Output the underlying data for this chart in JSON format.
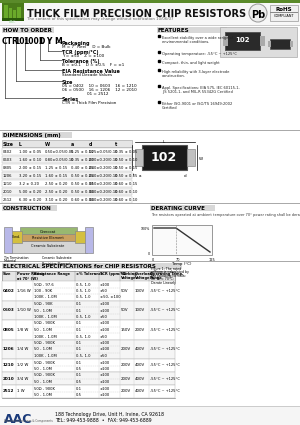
{
  "title": "THICK FILM PRECISION CHIP RESISTORS",
  "subtitle": "The content of this specification may change without notification 10/06/07",
  "bg_color": "#ffffff",
  "how_to_order_label": "HOW TO ORDER",
  "features_title": "FEATURES",
  "features": [
    "Excellent stability over a wide range of\nenvironmental conditions.",
    "Operating temperature: -55°C ~ +125°C",
    "Compact, thin, and light weight",
    "High reliability with 3-layer electrode\nconstruction.",
    "Appl. Specifications: EIA 575, IEC 60115-1,\nJIS 5201-1, and MIL-R 55342G Certified",
    "Either ISO-9001 or ISO/TS 16949:2002\nCertified"
  ],
  "dim_title": "DIMENSIONS (mm)",
  "dim_headers": [
    "Size",
    "L",
    "W",
    "a",
    "d",
    "t"
  ],
  "dim_rows": [
    [
      "0402",
      "1.00 ± 0.05",
      "0.50±0.05/0.05",
      "0.25 ± 0.10",
      "0.25±0.05/0.10",
      "0.35 ± 0.05"
    ],
    [
      "0603",
      "1.60 ± 0.10",
      "0.80±0.05/0.10",
      "0.35 ± 0.20",
      "0.30±0.20/0.10",
      "0.50 ± 0.10"
    ],
    [
      "0805",
      "2.00 ± 0.15",
      "1.25 ± 0.15",
      "0.40 ± 0.25",
      "0.40±0.20/0.10",
      "0.50 ± 0.15"
    ],
    [
      "1206",
      "3.20 ± 0.15",
      "1.60 ± 0.15",
      "0.50 ± 0.25",
      "0.40±0.20/0.10",
      "0.50 ± 0.15"
    ],
    [
      "1210",
      "3.2 ± 0.20",
      "2.50 ± 0.20",
      "0.50 ± 0.30",
      "0.50±0.20/0.10",
      "0.60 ± 0.15"
    ],
    [
      "2010",
      "5.00 ± 0.20",
      "2.50 ± 0.20",
      "0.50 ± 0.30",
      "0.40±0.20/0.10",
      "0.60 ± 0.10"
    ],
    [
      "2512",
      "6.30 ± 0.20",
      "3.10 ± 0.20",
      "0.60 ± 0.30",
      "0.40±0.20/0.10",
      "0.60 ± 0.10"
    ]
  ],
  "construction_title": "CONSTRUCTION",
  "derating_title": "DERATING CURVE",
  "derating_text": "The resistors operated at ambient temperature over 70° power rating shall be derated to reach device performance.",
  "elec_title": "ELECTRICAL SPECIFICATIONS for CHIP RESISTORS",
  "elec_headers": [
    "Size",
    "Power Rating\nat 70° (W)",
    "Resistance Range",
    "±% Tolerance",
    "TCR (ppm/°C)",
    "Working\nVoltage",
    "Overload\nVoltage",
    "Operating Temp.\nRange"
  ],
  "elec_rows": [
    [
      "0402",
      "1/16 W",
      [
        "50Ω - 97.6",
        "100 - 90K",
        "100K - 1.0M"
      ],
      [
        "0.5, 1.0",
        "0.5, 1.0",
        "0.5, 1.0"
      ],
      [
        "±100",
        "±50",
        "±50, ±100"
      ],
      "50V",
      "100V",
      "-55°C ~ +125°C"
    ],
    [
      "0603",
      "1/10 W",
      [
        "50Ω - 90K",
        "50 - 1.0M",
        "100K - 1.0M"
      ],
      [
        "0.1",
        "0.1",
        "0.5, 1.0"
      ],
      [
        "±100",
        "±100",
        "±50"
      ],
      "50V",
      "100V",
      "-55°C ~ +125°C"
    ],
    [
      "0805",
      "1/8 W",
      [
        "50Ω - 900K",
        "50 - 1.0M",
        "100K - 1.0M"
      ],
      [
        "0.1",
        "0.1",
        "0.5, 1.0"
      ],
      [
        "±100",
        "±100",
        "±50"
      ],
      "150V",
      "200V",
      "-55°C ~ +125°C"
    ],
    [
      "1206",
      "1/4 W",
      [
        "50Ω - 900K",
        "50 - 1.0M",
        "100K - 1.0M"
      ],
      [
        "0.1",
        "0.1",
        "0.5, 1.0"
      ],
      [
        "±100",
        "±100",
        "±50"
      ],
      "200V",
      "400V",
      "-55°C ~ +125°C"
    ],
    [
      "1210",
      "1/2 W",
      [
        "50Ω - 900K",
        "50 - 1.0M"
      ],
      [
        "0.1",
        "0.5"
      ],
      [
        "±100",
        "±100"
      ],
      "200V",
      "400V",
      "-55°C ~ +125°C"
    ],
    [
      "2010",
      "3/4 W",
      [
        "50Ω - 900K",
        "50 - 1.0M"
      ],
      [
        "0.1",
        "0.5"
      ],
      [
        "±100",
        "±100"
      ],
      "200V",
      "400V",
      "-55°C ~ +125°C"
    ],
    [
      "2512",
      "1 W",
      [
        "50Ω - 900K",
        "50 - 1.0M"
      ],
      [
        "0.1",
        "0.5"
      ],
      [
        "±100",
        "±100"
      ],
      "200V",
      "400V",
      "-55°C ~ +125°C"
    ]
  ],
  "footer_logo": "AAC",
  "footer_address": "188 Technology Drive, Unit H, Irvine, CA 92618",
  "footer_tel": "TEL: 949-453-9888  •  FAX: 949-453-6889"
}
